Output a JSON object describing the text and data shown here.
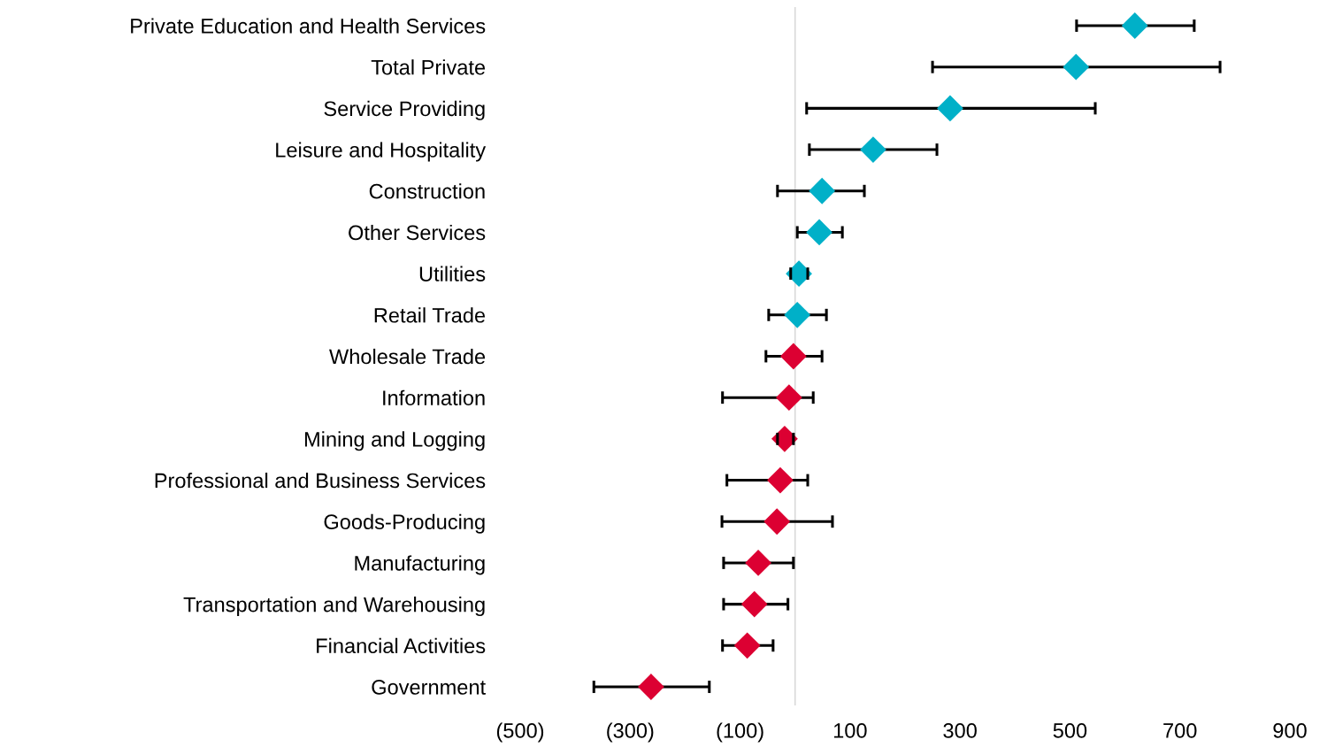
{
  "chart_data": {
    "type": "scatter",
    "orientation": "horizontal",
    "marker": "diamond",
    "grid": false,
    "categories": [
      "Private Education and Health Services",
      "Total Private",
      "Service Providing",
      "Leisure and Hospitality",
      "Construction",
      "Other Services",
      "Utilities",
      "Retail Trade",
      "Wholesale Trade",
      "Information",
      "Mining and Logging",
      "Professional and Business Services",
      "Goods-Producing",
      "Manufacturing",
      "Transportation and Warehousing",
      "Financial Activities",
      "Government"
    ],
    "values": [
      618,
      511,
      282,
      142,
      49,
      44,
      7,
      4,
      -3,
      -11,
      -19,
      -27,
      -33,
      -67,
      -74,
      -87,
      -262
    ],
    "errors": [
      [
        512,
        726
      ],
      [
        250,
        773
      ],
      [
        21,
        546
      ],
      [
        26,
        258
      ],
      [
        -32,
        126
      ],
      [
        4,
        86
      ],
      [
        -8,
        23
      ],
      [
        -48,
        57
      ],
      [
        -53,
        49
      ],
      [
        -132,
        33
      ],
      [
        -32,
        -3
      ],
      [
        -124,
        23
      ],
      [
        -133,
        68
      ],
      [
        -130,
        -3
      ],
      [
        -130,
        -13
      ],
      [
        -132,
        -40
      ],
      [
        -366,
        -156
      ]
    ],
    "colors": [
      "#00b0c8",
      "#00b0c8",
      "#00b0c8",
      "#00b0c8",
      "#00b0c8",
      "#00b0c8",
      "#00b0c8",
      "#00b0c8",
      "#dc0032",
      "#dc0032",
      "#dc0032",
      "#dc0032",
      "#dc0032",
      "#dc0032",
      "#dc0032",
      "#dc0032",
      "#dc0032"
    ],
    "xlim": [
      -500,
      900
    ],
    "xticks": [
      {
        "value": -500,
        "label": "(500)"
      },
      {
        "value": -300,
        "label": "(300)"
      },
      {
        "value": -100,
        "label": "(100)"
      },
      100,
      300,
      500,
      700,
      900
    ],
    "ref_lines": [
      {
        "axis": "x",
        "value": 0,
        "label": null,
        "color": "#d9d9d9"
      }
    ]
  }
}
